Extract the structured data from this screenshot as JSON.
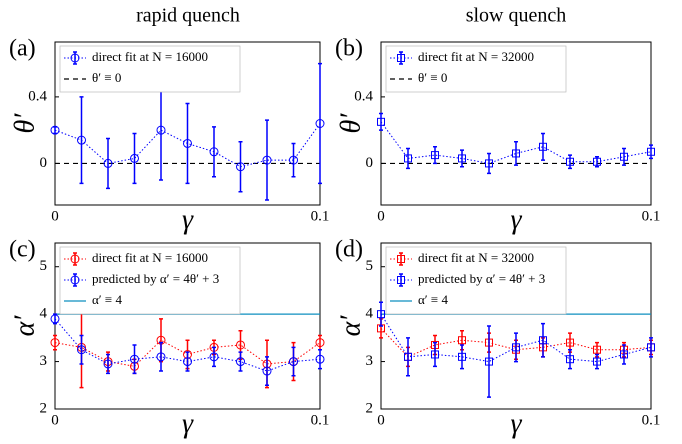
{
  "column_titles": [
    "rapid quench",
    "slow quench"
  ],
  "chart_data": [
    {
      "type": "line",
      "panel_label": "(a)",
      "xlabel": "γ",
      "ylabel": "θ′",
      "xlim": [
        0,
        0.1
      ],
      "xticks": [
        0,
        0.1
      ],
      "ylim": [
        -0.25,
        0.73
      ],
      "yticks": [
        0,
        0.4
      ],
      "x": [
        0,
        0.01,
        0.02,
        0.03,
        0.04,
        0.05,
        0.06,
        0.07,
        0.08,
        0.09,
        0.1
      ],
      "series": [
        {
          "name": "direct fit at N = 16000",
          "color": "#0000ff",
          "marker": "circle",
          "values": [
            0.2,
            0.14,
            0,
            0.03,
            0.2,
            0.12,
            0.07,
            -0.02,
            0.02,
            0.02,
            0.24
          ],
          "errors": [
            0.02,
            0.26,
            0.15,
            0.15,
            0.3,
            0.24,
            0.15,
            0.15,
            0.24,
            0.1,
            0.36
          ]
        }
      ],
      "hlines": [
        {
          "name": "θ′ ≡ 0",
          "value": 0,
          "color": "#000000",
          "dashed": true
        }
      ]
    },
    {
      "type": "line",
      "panel_label": "(b)",
      "xlabel": "γ",
      "ylabel": "θ′",
      "xlim": [
        0,
        0.1
      ],
      "xticks": [
        0,
        0.1
      ],
      "ylim": [
        -0.25,
        0.73
      ],
      "yticks": [
        0,
        0.4
      ],
      "x": [
        0,
        0.01,
        0.02,
        0.03,
        0.04,
        0.05,
        0.06,
        0.07,
        0.08,
        0.09,
        0.1
      ],
      "series": [
        {
          "name": "direct fit at N = 32000",
          "color": "#0000ff",
          "marker": "square",
          "values": [
            0.25,
            0.03,
            0.05,
            0.03,
            0,
            0.06,
            0.1,
            0.01,
            0.01,
            0.04,
            0.07
          ],
          "errors": [
            0.05,
            0.06,
            0.05,
            0.05,
            0.06,
            0.07,
            0.08,
            0.04,
            0.03,
            0.05,
            0.04
          ]
        }
      ],
      "hlines": [
        {
          "name": "θ′ ≡ 0",
          "value": 0,
          "color": "#000000",
          "dashed": true
        }
      ]
    },
    {
      "type": "line",
      "panel_label": "(c)",
      "xlabel": "γ",
      "ylabel": "α′",
      "xlim": [
        0,
        0.1
      ],
      "xticks": [
        0,
        0.1
      ],
      "ylim": [
        2,
        5.5
      ],
      "yticks": [
        2,
        3,
        4,
        5
      ],
      "x": [
        0,
        0.01,
        0.02,
        0.03,
        0.04,
        0.05,
        0.06,
        0.07,
        0.08,
        0.09,
        0.1
      ],
      "series": [
        {
          "name": "direct fit at N = 16000",
          "color": "#ff0000",
          "marker": "circle",
          "values": [
            3.4,
            3.3,
            3.0,
            2.9,
            3.45,
            3.15,
            3.3,
            3.35,
            2.95,
            3.0,
            3.4
          ],
          "errors": [
            0.15,
            0.85,
            0.2,
            0.15,
            0.45,
            0.3,
            0.15,
            0.3,
            0.5,
            0.4,
            0.15
          ]
        },
        {
          "name": "predicted by α′ = 4θ′ + 3",
          "color": "#0000ff",
          "marker": "circle",
          "values": [
            3.9,
            3.25,
            2.95,
            3.05,
            3.1,
            3.0,
            3.1,
            3.0,
            2.8,
            3.0,
            3.05
          ],
          "errors": [
            0.1,
            0.3,
            0.2,
            0.3,
            0.3,
            0.2,
            0.2,
            0.2,
            0.3,
            0.3,
            0.2
          ]
        }
      ],
      "hlines": [
        {
          "name": "α′ ≡ 4",
          "value": 4,
          "color": "#0e8fbf",
          "dashed": false
        }
      ]
    },
    {
      "type": "line",
      "panel_label": "(d)",
      "xlabel": "γ",
      "ylabel": "α′",
      "xlim": [
        0,
        0.1
      ],
      "xticks": [
        0,
        0.1
      ],
      "ylim": [
        2,
        5.5
      ],
      "yticks": [
        2,
        3,
        4,
        5
      ],
      "x": [
        0,
        0.01,
        0.02,
        0.03,
        0.04,
        0.05,
        0.06,
        0.07,
        0.08,
        0.09,
        0.1
      ],
      "series": [
        {
          "name": "direct fit at N = 32000",
          "color": "#ff0000",
          "marker": "square",
          "values": [
            3.7,
            3.1,
            3.35,
            3.45,
            3.4,
            3.25,
            3.3,
            3.4,
            3.25,
            3.25,
            3.3
          ],
          "errors": [
            0.2,
            0.2,
            0.2,
            0.2,
            0.2,
            0.2,
            0.2,
            0.2,
            0.15,
            0.15,
            0.15
          ]
        },
        {
          "name": "predicted by α′ = 4θ′ + 3",
          "color": "#0000ff",
          "marker": "square",
          "values": [
            4.0,
            3.1,
            3.15,
            3.1,
            3.0,
            3.3,
            3.45,
            3.05,
            3.0,
            3.15,
            3.3
          ],
          "errors": [
            0.25,
            0.4,
            0.25,
            0.25,
            0.75,
            0.3,
            0.35,
            0.2,
            0.15,
            0.2,
            0.2
          ]
        }
      ],
      "hlines": [
        {
          "name": "α′ ≡ 4",
          "value": 4,
          "color": "#0e8fbf",
          "dashed": false
        }
      ]
    }
  ]
}
